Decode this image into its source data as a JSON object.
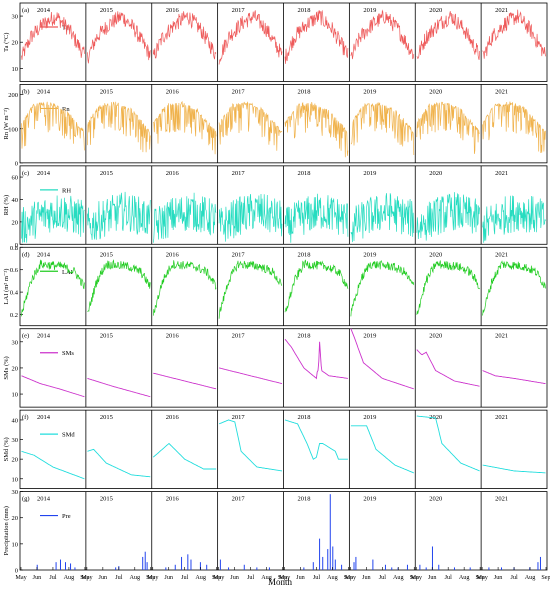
{
  "figure": {
    "xlabel": "Month"
  },
  "chart_data": {
    "type": "line",
    "years": [
      "2014",
      "2015",
      "2016",
      "2017",
      "2018",
      "2019",
      "2020",
      "2021"
    ],
    "month_ticks": [
      "May",
      "Jun",
      "Jul",
      "Aug",
      "Sep"
    ],
    "xlabel": "Month",
    "panels": [
      {
        "id": "a",
        "label": "(a)",
        "ylabel": "Ta (°C)",
        "legend": "Ta",
        "color": "#ee5a5a",
        "kind": "line",
        "ylim": [
          5,
          35
        ],
        "yticks": [
          10,
          20,
          30
        ],
        "yearly_profile": [
          [
            0,
            14
          ],
          [
            0.15,
            22
          ],
          [
            0.35,
            27
          ],
          [
            0.55,
            30
          ],
          [
            0.75,
            25
          ],
          [
            1,
            15
          ]
        ],
        "noise": 6
      },
      {
        "id": "b",
        "label": "(b)",
        "ylabel": "Rn (W m⁻²)",
        "legend": "Rn",
        "color": "#f0b24b",
        "kind": "line",
        "ylim": [
          0,
          230
        ],
        "yticks": [
          0,
          100,
          200
        ],
        "yearly_profile": [
          [
            0,
            120
          ],
          [
            0.2,
            175
          ],
          [
            0.45,
            180
          ],
          [
            0.7,
            160
          ],
          [
            1,
            95
          ]
        ],
        "noise": 90
      },
      {
        "id": "c",
        "label": "(c)",
        "ylabel": "RH (%)",
        "legend": "RH",
        "color": "#26dcc0",
        "kind": "line",
        "ylim": [
          0,
          70
        ],
        "yticks": [
          0,
          20,
          40,
          60
        ],
        "yearly_profile": [
          [
            0,
            15
          ],
          [
            0.3,
            25
          ],
          [
            0.6,
            30
          ],
          [
            1,
            22
          ]
        ],
        "noise": 35
      },
      {
        "id": "d",
        "label": "(d)",
        "ylabel": "LAI (m² m⁻²)",
        "legend": "LAI",
        "color": "#22cc22",
        "kind": "line",
        "ylim": [
          0.1,
          0.8
        ],
        "yticks": [
          0.2,
          0.4,
          0.6,
          0.8
        ],
        "yearly_profile": [
          [
            0,
            0.2
          ],
          [
            0.15,
            0.5
          ],
          [
            0.3,
            0.65
          ],
          [
            0.65,
            0.63
          ],
          [
            0.85,
            0.58
          ],
          [
            1,
            0.45
          ]
        ],
        "noise": 0.08
      },
      {
        "id": "e",
        "label": "(e)",
        "ylabel": "SMs (%)",
        "legend": "SMs",
        "color": "#cc33cc",
        "kind": "smooth",
        "ylim": [
          5,
          35
        ],
        "yticks": [
          10,
          20,
          30
        ],
        "per_year": [
          [
            [
              0,
              17
            ],
            [
              0.1,
              16
            ],
            [
              0.3,
              14
            ],
            [
              0.6,
              12
            ],
            [
              1,
              9
            ]
          ],
          [
            [
              0,
              16
            ],
            [
              0.4,
              13
            ],
            [
              1,
              9
            ]
          ],
          [
            [
              0,
              18
            ],
            [
              0.5,
              15
            ],
            [
              1,
              12
            ]
          ],
          [
            [
              0,
              20
            ],
            [
              0.5,
              17
            ],
            [
              1,
              14
            ]
          ],
          [
            [
              0,
              31
            ],
            [
              0.1,
              28
            ],
            [
              0.3,
              20
            ],
            [
              0.45,
              17
            ],
            [
              0.5,
              16
            ],
            [
              0.52,
              20
            ],
            [
              0.53,
              18
            ],
            [
              0.55,
              30
            ],
            [
              0.58,
              19
            ],
            [
              0.7,
              17
            ],
            [
              1,
              16
            ]
          ],
          [
            [
              0,
              35
            ],
            [
              0.05,
              32
            ],
            [
              0.2,
              22
            ],
            [
              0.5,
              16
            ],
            [
              1,
              12
            ]
          ],
          [
            [
              0,
              27
            ],
            [
              0.08,
              25
            ],
            [
              0.15,
              26
            ],
            [
              0.3,
              19
            ],
            [
              0.6,
              15
            ],
            [
              1,
              13
            ]
          ],
          [
            [
              0,
              19
            ],
            [
              0.2,
              17
            ],
            [
              0.5,
              16
            ],
            [
              1,
              14
            ]
          ]
        ]
      },
      {
        "id": "f",
        "label": "(f)",
        "ylabel": "SMd (%)",
        "legend": "SMd",
        "color": "#22dddd",
        "kind": "smooth",
        "ylim": [
          5,
          45
        ],
        "yticks": [
          10,
          20,
          30,
          40
        ],
        "per_year": [
          [
            [
              0,
              24
            ],
            [
              0.2,
              22
            ],
            [
              0.5,
              16
            ],
            [
              1,
              10
            ]
          ],
          [
            [
              0,
              24
            ],
            [
              0.1,
              25
            ],
            [
              0.3,
              18
            ],
            [
              0.7,
              12
            ],
            [
              1,
              11
            ]
          ],
          [
            [
              0,
              21
            ],
            [
              0.25,
              28
            ],
            [
              0.5,
              20
            ],
            [
              0.8,
              15
            ],
            [
              1,
              15
            ]
          ],
          [
            [
              0,
              38
            ],
            [
              0.15,
              40
            ],
            [
              0.25,
              39
            ],
            [
              0.35,
              24
            ],
            [
              0.6,
              16
            ],
            [
              1,
              14
            ]
          ],
          [
            [
              0,
              40
            ],
            [
              0.2,
              38
            ],
            [
              0.35,
              28
            ],
            [
              0.45,
              20
            ],
            [
              0.5,
              21
            ],
            [
              0.55,
              28
            ],
            [
              0.6,
              28
            ],
            [
              0.8,
              24
            ],
            [
              0.85,
              20
            ],
            [
              1,
              20
            ]
          ],
          [
            [
              0,
              37
            ],
            [
              0.25,
              37
            ],
            [
              0.4,
              25
            ],
            [
              0.7,
              17
            ],
            [
              1,
              13
            ]
          ],
          [
            [
              0,
              42
            ],
            [
              0.3,
              41
            ],
            [
              0.4,
              28
            ],
            [
              0.7,
              18
            ],
            [
              1,
              14
            ]
          ],
          [
            [
              0,
              17
            ],
            [
              0.5,
              14
            ],
            [
              1,
              13
            ]
          ]
        ]
      },
      {
        "id": "g",
        "label": "(g)",
        "ylabel": "Precipitation (mm)",
        "legend": "Pre",
        "color": "#2244ee",
        "kind": "bars",
        "ylim": [
          0,
          30
        ],
        "yticks": [
          0,
          10,
          20,
          30
        ],
        "events": [
          [
            [
              0.25,
              2
            ],
            [
              0.55,
              3
            ],
            [
              0.62,
              4
            ],
            [
              0.7,
              3
            ],
            [
              0.78,
              2.5
            ],
            [
              0.85,
              1
            ]
          ],
          [
            [
              0.45,
              1
            ],
            [
              0.5,
              1.5
            ],
            [
              0.88,
              5
            ],
            [
              0.92,
              7
            ],
            [
              0.95,
              3
            ]
          ],
          [
            [
              0.2,
              1
            ],
            [
              0.35,
              2
            ],
            [
              0.45,
              5
            ],
            [
              0.55,
              6
            ],
            [
              0.6,
              4
            ],
            [
              0.75,
              3
            ],
            [
              0.85,
              2
            ]
          ],
          [
            [
              0.02,
              4
            ],
            [
              0.15,
              1
            ],
            [
              0.4,
              2
            ],
            [
              0.6,
              1
            ],
            [
              0.8,
              1
            ]
          ],
          [
            [
              0.3,
              1
            ],
            [
              0.45,
              3
            ],
            [
              0.55,
              12
            ],
            [
              0.6,
              5
            ],
            [
              0.68,
              8
            ],
            [
              0.72,
              29
            ],
            [
              0.76,
              9
            ],
            [
              0.8,
              4
            ],
            [
              0.9,
              2
            ]
          ],
          [
            [
              0.05,
              3
            ],
            [
              0.08,
              5
            ],
            [
              0.35,
              4
            ],
            [
              0.55,
              2
            ],
            [
              0.65,
              1
            ],
            [
              0.75,
              1
            ],
            [
              0.9,
              2
            ]
          ],
          [
            [
              0.05,
              2
            ],
            [
              0.15,
              1
            ],
            [
              0.25,
              9
            ],
            [
              0.35,
              2
            ],
            [
              0.6,
              1
            ],
            [
              0.85,
              1
            ]
          ],
          [
            [
              0.1,
              1
            ],
            [
              0.3,
              1
            ],
            [
              0.5,
              1
            ],
            [
              0.75,
              1
            ],
            [
              0.88,
              3
            ],
            [
              0.92,
              5
            ]
          ]
        ]
      }
    ]
  }
}
